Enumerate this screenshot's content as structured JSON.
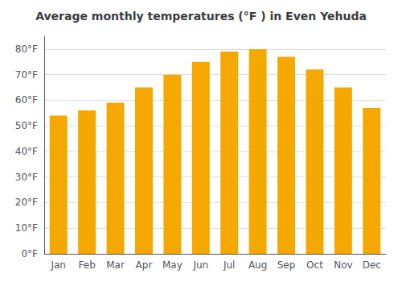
{
  "chart_data": {
    "type": "bar",
    "title": "Average monthly temperatures (°F ) in Even Yehuda",
    "categories": [
      "Jan",
      "Feb",
      "Mar",
      "Apr",
      "May",
      "Jun",
      "Jul",
      "Aug",
      "Sep",
      "Oct",
      "Nov",
      "Dec"
    ],
    "values": [
      54,
      56,
      59,
      65,
      70,
      75,
      79,
      80,
      77,
      72,
      65,
      57
    ],
    "color": "#F5A800",
    "ylim": [
      0,
      85
    ],
    "yticks": [
      {
        "value": 0,
        "label": "0°F"
      },
      {
        "value": 10,
        "label": "10°F"
      },
      {
        "value": 20,
        "label": "20°F"
      },
      {
        "value": 30,
        "label": "30°F"
      },
      {
        "value": 40,
        "label": "40°F"
      },
      {
        "value": 50,
        "label": "50°F"
      },
      {
        "value": 60,
        "label": "60°F"
      },
      {
        "value": 70,
        "label": "70°F"
      },
      {
        "value": 80,
        "label": "80°F"
      }
    ],
    "grid": true
  }
}
